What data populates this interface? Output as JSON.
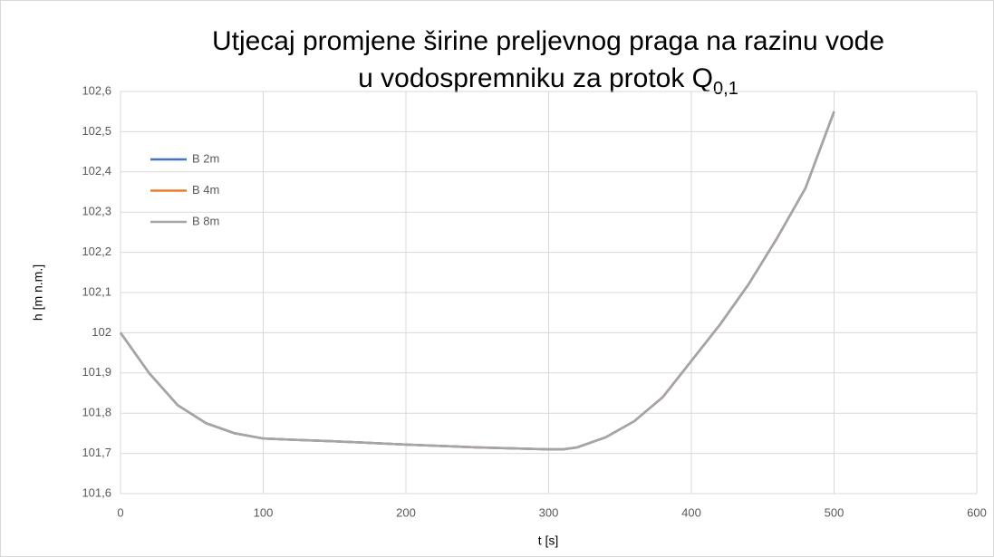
{
  "chart_data": {
    "type": "line",
    "title": [
      "Utjecaj promjene širine preljevnog praga na razinu vode",
      "u vodospremniku za protok Q"
    ],
    "title_subscript": "0,1",
    "x_label": "t [s]",
    "y_label": "h [m n.m.]",
    "x": [
      0,
      20,
      40,
      60,
      80,
      100,
      120,
      150,
      200,
      250,
      300,
      310,
      320,
      340,
      360,
      380,
      400,
      420,
      440,
      460,
      480,
      500
    ],
    "series": [
      {
        "name": "B 2m",
        "color": "#4472c4",
        "values": [
          102.0,
          101.9,
          101.82,
          101.775,
          101.75,
          101.737,
          101.734,
          101.73,
          101.722,
          101.715,
          101.71,
          101.71,
          101.715,
          101.74,
          101.78,
          101.84,
          101.93,
          102.02,
          102.12,
          102.235,
          102.36,
          102.55
        ]
      },
      {
        "name": "B 4m",
        "color": "#ed7d31",
        "values": [
          102.0,
          101.9,
          101.82,
          101.775,
          101.75,
          101.737,
          101.734,
          101.73,
          101.722,
          101.715,
          101.71,
          101.71,
          101.715,
          101.74,
          101.78,
          101.84,
          101.93,
          102.02,
          102.12,
          102.235,
          102.36,
          102.55
        ]
      },
      {
        "name": "B 8m",
        "color": "#a5a5a5",
        "values": [
          102.0,
          101.9,
          101.82,
          101.775,
          101.75,
          101.737,
          101.734,
          101.73,
          101.722,
          101.715,
          101.71,
          101.71,
          101.715,
          101.74,
          101.78,
          101.84,
          101.93,
          102.02,
          102.12,
          102.235,
          102.36,
          102.55
        ]
      }
    ],
    "xlim": [
      0,
      600
    ],
    "xticks": [
      0,
      100,
      200,
      300,
      400,
      500,
      600
    ],
    "ylim": [
      101.6,
      102.6
    ],
    "yticks": [
      {
        "value": 101.6,
        "label": "101,6"
      },
      {
        "value": 101.7,
        "label": "101,7"
      },
      {
        "value": 101.8,
        "label": "101,8"
      },
      {
        "value": 101.9,
        "label": "101,9"
      },
      102,
      {
        "value": 102.1,
        "label": "102,1"
      },
      {
        "value": 102.2,
        "label": "102,2"
      },
      {
        "value": 102.3,
        "label": "102,3"
      },
      {
        "value": 102.4,
        "label": "102,4"
      },
      {
        "value": 102.5,
        "label": "102,5"
      },
      {
        "value": 102.6,
        "label": "102,6"
      }
    ],
    "grid": true,
    "legend": "top-left"
  }
}
